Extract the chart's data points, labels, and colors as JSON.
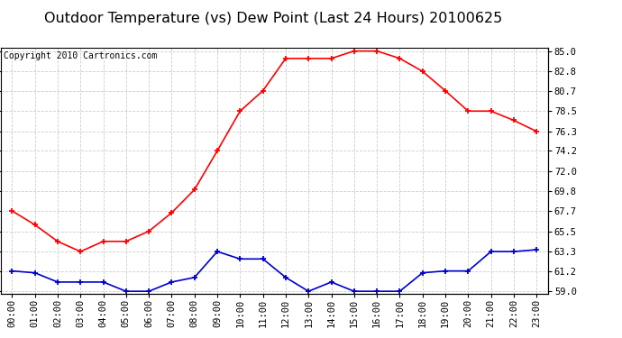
{
  "title": "Outdoor Temperature (vs) Dew Point (Last 24 Hours) 20100625",
  "copyright": "Copyright 2010 Cartronics.com",
  "hours": [
    "00:00",
    "01:00",
    "02:00",
    "03:00",
    "04:00",
    "05:00",
    "06:00",
    "07:00",
    "08:00",
    "09:00",
    "10:00",
    "11:00",
    "12:00",
    "13:00",
    "14:00",
    "15:00",
    "16:00",
    "17:00",
    "18:00",
    "19:00",
    "20:00",
    "21:00",
    "22:00",
    "23:00"
  ],
  "temp": [
    67.7,
    66.2,
    64.4,
    63.3,
    64.4,
    64.4,
    65.5,
    67.5,
    70.0,
    74.2,
    78.5,
    80.7,
    84.2,
    84.2,
    84.2,
    85.0,
    85.0,
    84.2,
    82.8,
    80.7,
    78.5,
    78.5,
    77.5,
    76.3
  ],
  "dewpoint": [
    61.2,
    61.0,
    60.0,
    60.0,
    60.0,
    59.0,
    59.0,
    60.0,
    60.5,
    63.3,
    62.5,
    62.5,
    60.5,
    59.0,
    60.0,
    59.0,
    59.0,
    59.0,
    61.0,
    61.2,
    61.2,
    63.3,
    63.3,
    63.5
  ],
  "temp_color": "#ff0000",
  "dewpoint_color": "#0000cc",
  "bg_color": "#ffffff",
  "grid_color": "#cccccc",
  "ylim_min": 58.7,
  "ylim_max": 85.4,
  "yticks": [
    59.0,
    61.2,
    63.3,
    65.5,
    67.7,
    69.8,
    72.0,
    74.2,
    76.3,
    78.5,
    80.7,
    82.8,
    85.0
  ],
  "title_fontsize": 11.5,
  "copyright_fontsize": 7,
  "tick_fontsize": 7.5,
  "marker": "+"
}
